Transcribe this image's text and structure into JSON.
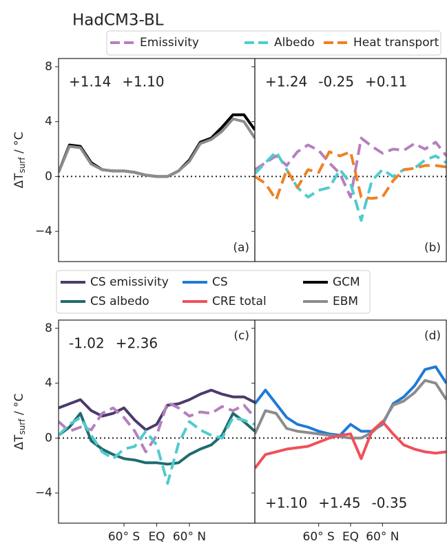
{
  "title": "HadCM3-BL",
  "ylabel": {
    "main": "ΔT",
    "sub": "surf",
    "rest": " / °C"
  },
  "chart_data": [
    {
      "type": "line",
      "label": "(a)",
      "label_corner": "bottom",
      "annotation_corner": "top",
      "x": [
        -180,
        -160,
        -140,
        -120,
        -100,
        -80,
        -60,
        -40,
        -20,
        0,
        20,
        40,
        60,
        80,
        100,
        120,
        140,
        160,
        180
      ],
      "xlim": [
        -180,
        180
      ],
      "ylim": [
        -6.2,
        8.6
      ],
      "yticks": [
        {
          "value": -4,
          "label": "−4"
        },
        0,
        4,
        8
      ],
      "annotations": [
        {
          "text": "+1.14",
          "color": "#111111"
        },
        {
          "text": "+1.10",
          "color": "#999999"
        }
      ],
      "series": [
        {
          "name": "GCM",
          "color": "#000000",
          "dash": false,
          "values": [
            0.3,
            2.3,
            2.2,
            1.0,
            0.5,
            0.4,
            0.4,
            0.3,
            0.1,
            0.0,
            0.0,
            0.4,
            1.2,
            2.5,
            2.8,
            3.6,
            4.5,
            4.5,
            3.4
          ]
        },
        {
          "name": "EBM",
          "color": "#8c8c8c",
          "dash": false,
          "values": [
            0.3,
            2.2,
            2.1,
            0.9,
            0.5,
            0.4,
            0.4,
            0.3,
            0.1,
            0.0,
            0.0,
            0.4,
            1.1,
            2.4,
            2.7,
            3.3,
            4.2,
            4.0,
            2.8
          ]
        }
      ]
    },
    {
      "type": "line",
      "label": "(b)",
      "label_corner": "bottom",
      "annotation_corner": "top",
      "x": [
        -180,
        -160,
        -140,
        -120,
        -100,
        -80,
        -60,
        -40,
        -20,
        0,
        20,
        40,
        60,
        80,
        100,
        120,
        140,
        160,
        180
      ],
      "xlim": [
        -180,
        180
      ],
      "ylim": [
        -6.2,
        8.6
      ],
      "yticks": [
        -4,
        0,
        4,
        8
      ],
      "annotations": [
        {
          "text": "+1.24",
          "color": "#a659b0"
        },
        {
          "text": "-0.25",
          "color": "#3fc0c8"
        },
        {
          "text": "+0.11",
          "color": "#e8832a"
        }
      ],
      "series": [
        {
          "name": "Emissivity",
          "color": "#b67fc0",
          "dash": true,
          "values": [
            0.5,
            1.0,
            1.5,
            0.8,
            1.8,
            2.3,
            1.9,
            1.0,
            0.2,
            -1.5,
            2.8,
            2.2,
            1.7,
            2.0,
            1.9,
            2.4,
            2.0,
            2.5,
            1.5
          ]
        },
        {
          "name": "Albedo",
          "color": "#4fcbd0",
          "dash": true,
          "values": [
            0.2,
            1.0,
            1.8,
            0.5,
            -0.8,
            -1.5,
            -1.0,
            -0.8,
            0.5,
            -0.5,
            -3.2,
            -0.3,
            0.5,
            0.0,
            0.5,
            0.6,
            1.2,
            1.5,
            1.0
          ]
        },
        {
          "name": "Heat transport",
          "color": "#ee8224",
          "dash": true,
          "values": [
            0.0,
            -0.5,
            -1.7,
            0.5,
            -0.8,
            0.5,
            0.3,
            1.8,
            1.5,
            1.8,
            -1.5,
            -1.6,
            -1.5,
            -0.3,
            0.5,
            0.6,
            0.8,
            0.8,
            0.7
          ]
        }
      ]
    },
    {
      "type": "line",
      "label": "(c)",
      "label_corner": "top",
      "annotation_corner": "top",
      "x": [
        -180,
        -160,
        -140,
        -120,
        -100,
        -80,
        -60,
        -40,
        -20,
        0,
        20,
        40,
        60,
        80,
        100,
        120,
        140,
        160,
        180
      ],
      "xlim": [
        -180,
        180
      ],
      "ylim": [
        -6.2,
        8.6
      ],
      "yticks": [
        {
          "value": -4,
          "label": "−4"
        },
        0,
        4,
        8
      ],
      "xticks": [
        {
          "value": -60,
          "label": "60° S"
        },
        {
          "value": 0,
          "label": "EQ"
        },
        {
          "value": 60,
          "label": "60° N"
        }
      ],
      "annotations": [
        {
          "text": "-1.02",
          "color": "#1f6b70"
        },
        {
          "text": "+2.36",
          "color": "#4b3a6b"
        }
      ],
      "series": [
        {
          "name": "CS emissivity",
          "color": "#4b3a6b",
          "dash": false,
          "values": [
            2.2,
            2.5,
            2.8,
            2.0,
            1.6,
            1.8,
            2.2,
            1.3,
            0.6,
            1.0,
            2.4,
            2.5,
            2.8,
            3.2,
            3.5,
            3.2,
            3.0,
            3.0,
            2.6
          ]
        },
        {
          "name": "CS albedo",
          "color": "#1f6b6e",
          "dash": false,
          "values": [
            0.2,
            0.8,
            1.8,
            -0.2,
            -0.8,
            -1.2,
            -1.5,
            -1.6,
            -1.8,
            -1.8,
            -1.9,
            -1.8,
            -1.2,
            -0.8,
            -0.5,
            0.2,
            1.8,
            1.2,
            0.5
          ]
        },
        {
          "name": "Emissivity",
          "color": "#b67fc0",
          "dash": true,
          "values": [
            1.2,
            0.5,
            0.8,
            0.6,
            1.8,
            2.2,
            1.5,
            0.5,
            -1.0,
            0.2,
            2.6,
            2.2,
            1.6,
            1.9,
            1.8,
            2.3,
            2.0,
            2.4,
            1.5
          ]
        },
        {
          "name": "Albedo",
          "color": "#4fcbd0",
          "dash": true,
          "values": [
            0.2,
            1.0,
            1.5,
            0.2,
            -1.0,
            -1.5,
            -0.8,
            -0.6,
            0.5,
            -0.5,
            -3.3,
            -0.4,
            1.2,
            0.6,
            0.2,
            0.0,
            1.5,
            1.3,
            1.0
          ]
        }
      ]
    },
    {
      "type": "line",
      "label": "(d)",
      "label_corner": "top",
      "annotation_corner": "bottom",
      "x": [
        -180,
        -160,
        -140,
        -120,
        -100,
        -80,
        -60,
        -40,
        -20,
        0,
        20,
        40,
        60,
        80,
        100,
        120,
        140,
        160,
        180
      ],
      "xlim": [
        -180,
        180
      ],
      "ylim": [
        -6.2,
        8.6
      ],
      "yticks": [
        -4,
        0,
        4,
        8
      ],
      "xticks": [
        {
          "value": -60,
          "label": "60° S"
        },
        {
          "value": 0,
          "label": "EQ"
        },
        {
          "value": 60,
          "label": "60° N"
        }
      ],
      "annotations": [
        {
          "text": "+1.10",
          "color": "#999999"
        },
        {
          "text": "+1.45",
          "color": "#1f7ad6"
        },
        {
          "text": "-0.35",
          "color": "#ee4752"
        }
      ],
      "series": [
        {
          "name": "CS",
          "color": "#1f7ad6",
          "dash": false,
          "values": [
            2.5,
            3.5,
            2.5,
            1.5,
            1.0,
            0.8,
            0.5,
            0.3,
            0.2,
            1.0,
            0.5,
            0.5,
            1.0,
            2.5,
            3.0,
            3.8,
            5.0,
            5.2,
            4.0
          ]
        },
        {
          "name": "EBM",
          "color": "#8c8c8c",
          "dash": false,
          "values": [
            0.3,
            2.0,
            1.8,
            0.7,
            0.5,
            0.4,
            0.3,
            0.2,
            0.1,
            0.0,
            0.0,
            0.4,
            1.1,
            2.4,
            2.7,
            3.3,
            4.2,
            4.0,
            2.8
          ]
        },
        {
          "name": "CRE total",
          "color": "#f0505a",
          "dash": false,
          "values": [
            -2.2,
            -1.2,
            -1.0,
            -0.8,
            -0.7,
            -0.6,
            -0.3,
            0.0,
            0.2,
            0.3,
            -1.5,
            0.5,
            1.2,
            0.3,
            -0.5,
            -0.8,
            -1.0,
            -1.1,
            -1.0
          ]
        }
      ]
    }
  ]
}
